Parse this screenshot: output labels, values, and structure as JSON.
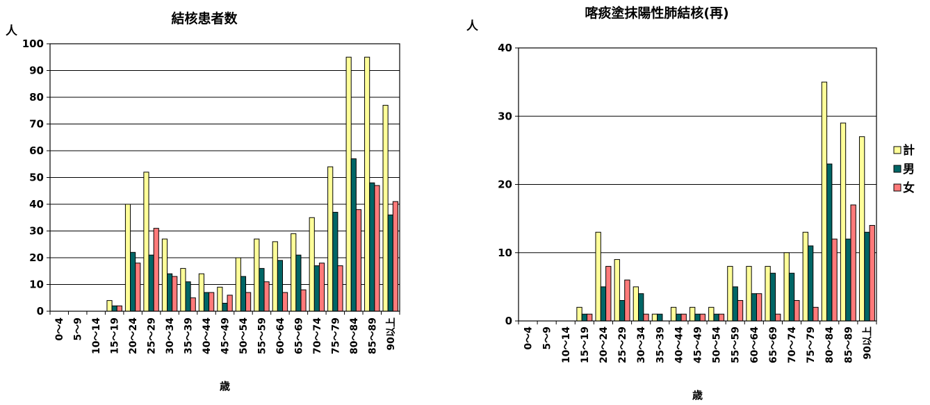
{
  "colors": {
    "計": "#FFFF99",
    "男": "#006666",
    "女": "#FF7A7A"
  },
  "chart_data": [
    {
      "type": "bar",
      "title": "結核患者数",
      "ylabel": "人",
      "xlabel": "歳",
      "ylim": [
        0,
        100
      ],
      "yticks": [
        0,
        10,
        20,
        30,
        40,
        50,
        60,
        70,
        80,
        90,
        100
      ],
      "grid": true,
      "legend": "none",
      "categories": [
        "0～4",
        "5～9",
        "10～14",
        "15～19",
        "20～24",
        "25～29",
        "30～34",
        "35～39",
        "40～44",
        "45～49",
        "50～54",
        "55～59",
        "60～64",
        "65～69",
        "70～74",
        "75～79",
        "80～84",
        "85～89",
        "90以上"
      ],
      "series": [
        {
          "name": "計",
          "values": [
            0,
            0,
            0,
            4,
            40,
            52,
            27,
            16,
            14,
            9,
            20,
            27,
            26,
            29,
            35,
            54,
            95,
            95,
            77
          ]
        },
        {
          "name": "男",
          "values": [
            0,
            0,
            0,
            2,
            22,
            21,
            14,
            11,
            7,
            3,
            13,
            16,
            19,
            21,
            17,
            37,
            57,
            48,
            36
          ]
        },
        {
          "name": "女",
          "values": [
            0,
            0,
            0,
            2,
            18,
            31,
            13,
            5,
            7,
            6,
            7,
            11,
            7,
            8,
            18,
            17,
            38,
            47,
            41
          ]
        }
      ]
    },
    {
      "type": "bar",
      "title": "喀痰塗抹陽性肺結核(再)",
      "ylabel": "人",
      "xlabel": "歳",
      "ylim": [
        0,
        40
      ],
      "yticks": [
        0,
        10,
        20,
        30,
        40
      ],
      "grid": true,
      "legend": "right",
      "categories": [
        "0～4",
        "5～9",
        "10～14",
        "15～19",
        "20～24",
        "25～29",
        "30～34",
        "35～39",
        "40～44",
        "45～49",
        "50～54",
        "55～59",
        "60～64",
        "65～69",
        "70～74",
        "75～79",
        "80～84",
        "85～89",
        "90以上"
      ],
      "series": [
        {
          "name": "計",
          "values": [
            0,
            0,
            0,
            2,
            13,
            9,
            5,
            1,
            2,
            2,
            2,
            8,
            8,
            8,
            10,
            13,
            35,
            29,
            27
          ]
        },
        {
          "name": "男",
          "values": [
            0,
            0,
            0,
            1,
            5,
            3,
            4,
            1,
            1,
            1,
            1,
            5,
            4,
            7,
            7,
            11,
            23,
            12,
            13
          ]
        },
        {
          "name": "女",
          "values": [
            0,
            0,
            0,
            1,
            8,
            6,
            1,
            0,
            1,
            1,
            1,
            3,
            4,
            1,
            3,
            2,
            12,
            17,
            14
          ]
        }
      ]
    }
  ]
}
